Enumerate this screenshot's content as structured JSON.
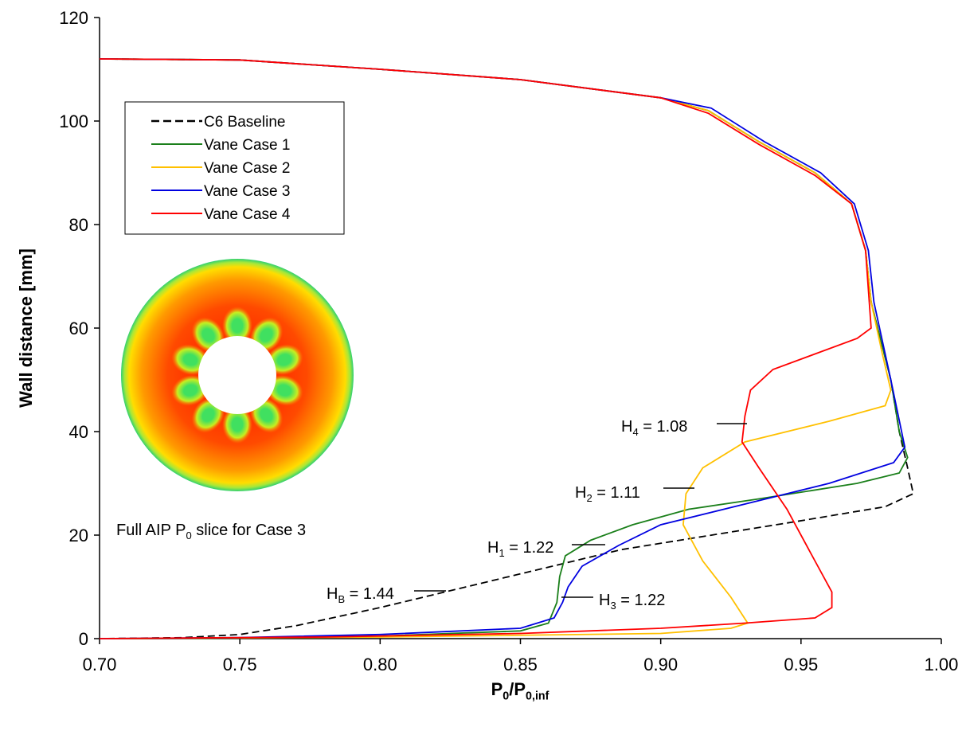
{
  "chart_data": {
    "type": "line",
    "x_label": {
      "parts": [
        "P",
        "0",
        "/P",
        "0,inf"
      ]
    },
    "y_label": "Wall distance [mm]",
    "xlim": [
      0.7,
      1.0
    ],
    "ylim": [
      0,
      120
    ],
    "xticks": [
      {
        "value": 0.7,
        "label": "0.70"
      },
      {
        "value": 0.75,
        "label": "0.75"
      },
      {
        "value": 0.8,
        "label": "0.80"
      },
      {
        "value": 0.85,
        "label": "0.85"
      },
      {
        "value": 0.9,
        "label": "0.90"
      },
      {
        "value": 0.95,
        "label": "0.95"
      },
      {
        "value": 1.0,
        "label": "1.00"
      }
    ],
    "yticks": [
      0,
      20,
      40,
      60,
      80,
      100,
      120
    ],
    "grid": false,
    "legend": "upper left",
    "series": [
      {
        "name": "C6 Baseline",
        "color": "#000000",
        "dash": true,
        "x": [
          0.7,
          0.75,
          0.8,
          0.85,
          0.9,
          0.917,
          0.935,
          0.955,
          0.968,
          0.973,
          0.975,
          0.982,
          0.985,
          0.988,
          0.99,
          0.98,
          0.948,
          0.886,
          0.823,
          0.8,
          0.77,
          0.75,
          0.73,
          0.7
        ],
        "values": [
          112,
          111.8,
          110,
          108,
          104.5,
          102,
          96,
          90,
          84,
          75,
          65,
          50,
          40,
          33,
          28,
          25.5,
          22.6,
          17.2,
          9,
          6,
          2.5,
          0.8,
          0.2,
          0
        ]
      },
      {
        "name": "Vane Case 1",
        "color": "#1a7f1a",
        "dash": false,
        "x": [
          0.7,
          0.75,
          0.8,
          0.85,
          0.9,
          0.917,
          0.935,
          0.955,
          0.968,
          0.973,
          0.975,
          0.982,
          0.985,
          0.988,
          0.985,
          0.97,
          0.935,
          0.91,
          0.89,
          0.875,
          0.866,
          0.864,
          0.863,
          0.86,
          0.85,
          0.8,
          0.75,
          0.7
        ],
        "values": [
          112,
          111.8,
          110,
          108,
          104.5,
          102,
          96,
          90,
          84,
          75,
          65,
          50,
          40,
          35,
          32,
          30,
          27,
          25,
          22,
          19,
          16,
          12,
          7,
          3,
          1.5,
          0.5,
          0.1,
          0
        ]
      },
      {
        "name": "Vane Case 2",
        "color": "#ffc000",
        "dash": false,
        "x": [
          0.7,
          0.75,
          0.8,
          0.85,
          0.9,
          0.917,
          0.935,
          0.955,
          0.968,
          0.973,
          0.975,
          0.979,
          0.982,
          0.98,
          0.96,
          0.93,
          0.915,
          0.909,
          0.908,
          0.915,
          0.925,
          0.931,
          0.925,
          0.9,
          0.8,
          0.7
        ],
        "values": [
          112,
          111.8,
          110,
          108,
          104.5,
          102,
          96,
          90,
          84,
          75,
          65,
          55,
          48,
          45,
          42,
          38,
          33,
          28,
          22,
          15,
          8,
          3,
          2,
          1,
          0.3,
          0
        ]
      },
      {
        "name": "Vane Case 3",
        "color": "#0000e0",
        "dash": false,
        "x": [
          0.7,
          0.75,
          0.8,
          0.85,
          0.9,
          0.918,
          0.937,
          0.957,
          0.969,
          0.974,
          0.976,
          0.982,
          0.987,
          0.983,
          0.96,
          0.93,
          0.9,
          0.885,
          0.872,
          0.867,
          0.865,
          0.862,
          0.85,
          0.8,
          0.75,
          0.7
        ],
        "values": [
          112,
          111.8,
          110,
          108,
          104.5,
          102.5,
          96,
          90,
          84,
          75,
          65,
          50,
          37,
          34,
          30,
          26,
          22,
          18,
          14,
          10,
          7,
          4,
          2,
          0.8,
          0.2,
          0
        ]
      },
      {
        "name": "Vane Case 4",
        "color": "#ff0000",
        "dash": false,
        "x": [
          0.7,
          0.75,
          0.8,
          0.85,
          0.9,
          0.917,
          0.935,
          0.955,
          0.968,
          0.973,
          0.975,
          0.97,
          0.955,
          0.94,
          0.932,
          0.93,
          0.929,
          0.935,
          0.945,
          0.955,
          0.961,
          0.961,
          0.955,
          0.93,
          0.9,
          0.85,
          0.78,
          0.7
        ],
        "values": [
          112,
          111.8,
          110,
          108,
          104.5,
          101.5,
          95.5,
          89.5,
          84,
          75,
          60,
          58,
          55,
          52,
          48,
          43,
          38,
          33,
          25,
          15,
          9,
          6,
          4,
          3,
          2,
          1,
          0.3,
          0
        ]
      }
    ],
    "annotations": [
      {
        "parts": [
          "H",
          "B",
          " = 1.44"
        ]
      },
      {
        "parts": [
          "H",
          "1",
          " = 1.22"
        ]
      },
      {
        "parts": [
          "H",
          "3",
          " = 1.22"
        ]
      },
      {
        "parts": [
          "H",
          "2",
          " = 1.11"
        ]
      },
      {
        "parts": [
          "H",
          "4",
          " = 1.08"
        ]
      }
    ],
    "inset_caption": {
      "parts": [
        "Full AIP P",
        "0",
        " slice for Case 3"
      ]
    }
  }
}
